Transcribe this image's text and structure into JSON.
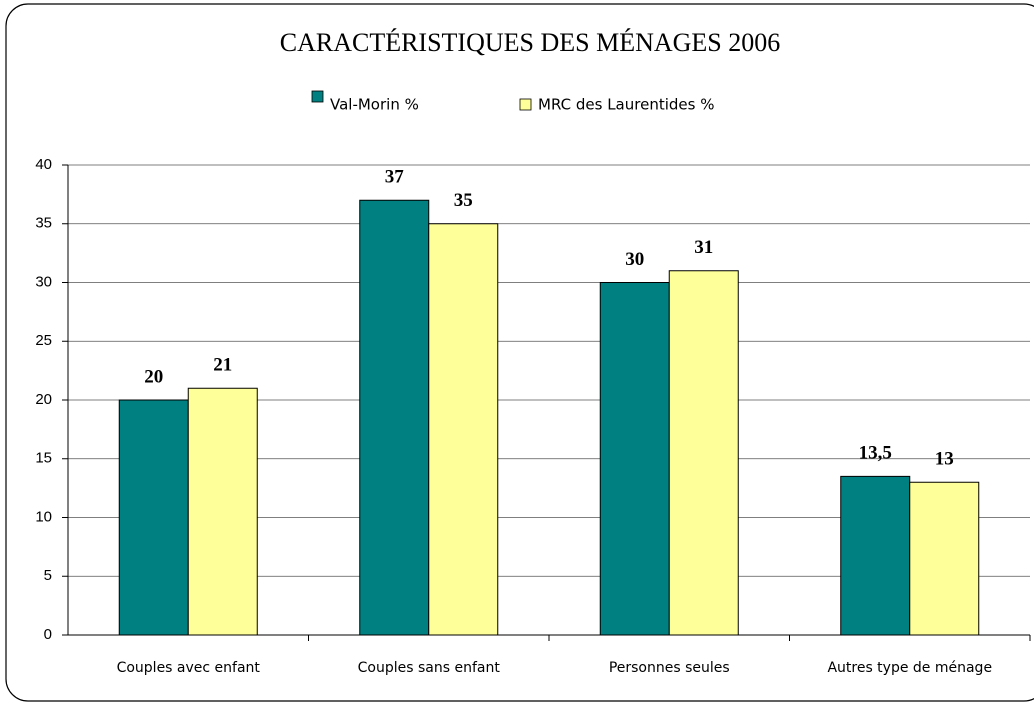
{
  "chart_data": {
    "type": "bar",
    "title": "CARACTÉRISTIQUES DES MÉNAGES 2006",
    "categories": [
      "Couples avec enfant",
      "Couples sans enfant",
      "Personnes seules",
      "Autres type de ménage"
    ],
    "series": [
      {
        "name": "Val-Morin %",
        "color": "#008080",
        "values": [
          20,
          37,
          30,
          13.5
        ],
        "value_labels": [
          "20",
          "37",
          "30",
          "13,5"
        ]
      },
      {
        "name": "MRC des Laurentides %",
        "color": "#ffff99",
        "values": [
          21,
          35,
          31,
          13
        ]
      }
    ],
    "ylim": [
      0,
      40
    ],
    "yticks": [
      0,
      5,
      10,
      15,
      20,
      25,
      30,
      35,
      40
    ],
    "grid": true,
    "legend": "top"
  }
}
